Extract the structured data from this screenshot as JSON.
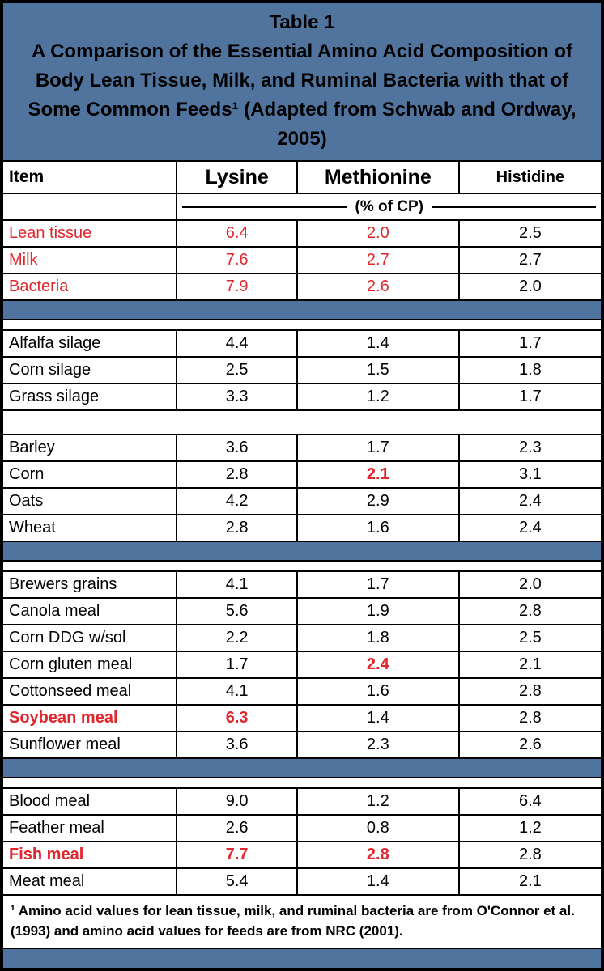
{
  "title": {
    "label": "Table 1",
    "text": "A Comparison of the Essential Amino Acid Composition of Body Lean Tissue, Milk, and Ruminal Bacteria with that of Some Common Feeds¹ (Adapted from Schwab and Ordway, 2005)"
  },
  "columns": [
    "Item",
    "Lysine",
    "Methionine",
    "Histidine"
  ],
  "subheader": {
    "label": "(% of CP)"
  },
  "colors": {
    "header_blue": "#51749f",
    "accent_red": "#e2262d"
  },
  "table": {
    "rows": [
      {
        "type": "data",
        "item": "Lean tissue",
        "item_style": "red",
        "values": [
          "6.4",
          "2.0",
          "2.5"
        ],
        "value_styles": [
          "red",
          "red",
          ""
        ]
      },
      {
        "type": "data",
        "item": "Milk",
        "item_style": "red",
        "values": [
          "7.6",
          "2.7",
          "2.7"
        ],
        "value_styles": [
          "red",
          "red",
          ""
        ]
      },
      {
        "type": "data",
        "item": "Bacteria",
        "item_style": "red",
        "values": [
          "7.9",
          "2.6",
          "2.0"
        ],
        "value_styles": [
          "red",
          "red",
          ""
        ]
      },
      {
        "type": "divider"
      },
      {
        "type": "spacer",
        "size": "thin"
      },
      {
        "type": "data",
        "item": "Alfalfa silage",
        "item_style": "",
        "values": [
          "4.4",
          "1.4",
          "1.7"
        ],
        "value_styles": [
          "",
          "",
          ""
        ]
      },
      {
        "type": "data",
        "item": "Corn silage",
        "item_style": "",
        "values": [
          "2.5",
          "1.5",
          "1.8"
        ],
        "value_styles": [
          "",
          "",
          ""
        ]
      },
      {
        "type": "data",
        "item": "Grass silage",
        "item_style": "",
        "values": [
          "3.3",
          "1.2",
          "1.7"
        ],
        "value_styles": [
          "",
          "",
          ""
        ]
      },
      {
        "type": "spacer",
        "size": "tall"
      },
      {
        "type": "data",
        "item": "Barley",
        "item_style": "",
        "values": [
          "3.6",
          "1.7",
          "2.3"
        ],
        "value_styles": [
          "",
          "",
          ""
        ]
      },
      {
        "type": "data",
        "item": "Corn",
        "item_style": "",
        "values": [
          "2.8",
          "2.1",
          "3.1"
        ],
        "value_styles": [
          "",
          "red-bold",
          ""
        ]
      },
      {
        "type": "data",
        "item": "Oats",
        "item_style": "",
        "values": [
          "4.2",
          "2.9",
          "2.4"
        ],
        "value_styles": [
          "",
          "",
          ""
        ]
      },
      {
        "type": "data",
        "item": "Wheat",
        "item_style": "",
        "values": [
          "2.8",
          "1.6",
          "2.4"
        ],
        "value_styles": [
          "",
          "",
          ""
        ]
      },
      {
        "type": "divider"
      },
      {
        "type": "spacer",
        "size": "thin"
      },
      {
        "type": "data",
        "item": "Brewers grains",
        "item_style": "",
        "values": [
          "4.1",
          "1.7",
          "2.0"
        ],
        "value_styles": [
          "",
          "",
          ""
        ]
      },
      {
        "type": "data",
        "item": "Canola meal",
        "item_style": "",
        "values": [
          "5.6",
          "1.9",
          "2.8"
        ],
        "value_styles": [
          "",
          "",
          ""
        ]
      },
      {
        "type": "data",
        "item": "Corn DDG w/sol",
        "item_style": "",
        "values": [
          "2.2",
          "1.8",
          "2.5"
        ],
        "value_styles": [
          "",
          "",
          ""
        ]
      },
      {
        "type": "data",
        "item": "Corn gluten meal",
        "item_style": "",
        "values": [
          "1.7",
          "2.4",
          "2.1"
        ],
        "value_styles": [
          "",
          "red-bold",
          ""
        ]
      },
      {
        "type": "data",
        "item": "Cottonseed meal",
        "item_style": "",
        "values": [
          "4.1",
          "1.6",
          "2.8"
        ],
        "value_styles": [
          "",
          "",
          ""
        ]
      },
      {
        "type": "data",
        "item": "Soybean meal",
        "item_style": "red-bold",
        "values": [
          "6.3",
          "1.4",
          "2.8"
        ],
        "value_styles": [
          "red-bold",
          "",
          ""
        ]
      },
      {
        "type": "data",
        "item": "Sunflower meal",
        "item_style": "",
        "values": [
          "3.6",
          "2.3",
          "2.6"
        ],
        "value_styles": [
          "",
          "",
          ""
        ]
      },
      {
        "type": "divider"
      },
      {
        "type": "spacer",
        "size": "thin"
      },
      {
        "type": "data",
        "item": "Blood meal",
        "item_style": "",
        "values": [
          "9.0",
          "1.2",
          "6.4"
        ],
        "value_styles": [
          "",
          "",
          ""
        ]
      },
      {
        "type": "data",
        "item": "Feather meal",
        "item_style": "",
        "values": [
          "2.6",
          "0.8",
          "1.2"
        ],
        "value_styles": [
          "",
          "",
          ""
        ]
      },
      {
        "type": "data",
        "item": "Fish meal",
        "item_style": "red-bold",
        "values": [
          "7.7",
          "2.8",
          "2.8"
        ],
        "value_styles": [
          "red-bold",
          "red-bold",
          ""
        ]
      },
      {
        "type": "data",
        "item": "Meat meal",
        "item_style": "",
        "values": [
          "5.4",
          "1.4",
          "2.1"
        ],
        "value_styles": [
          "",
          "",
          ""
        ]
      }
    ]
  },
  "footnote": "¹ Amino acid values for lean tissue, milk, and ruminal bacteria are from O'Connor et al. (1993) and amino acid values for feeds are from NRC (2001)."
}
